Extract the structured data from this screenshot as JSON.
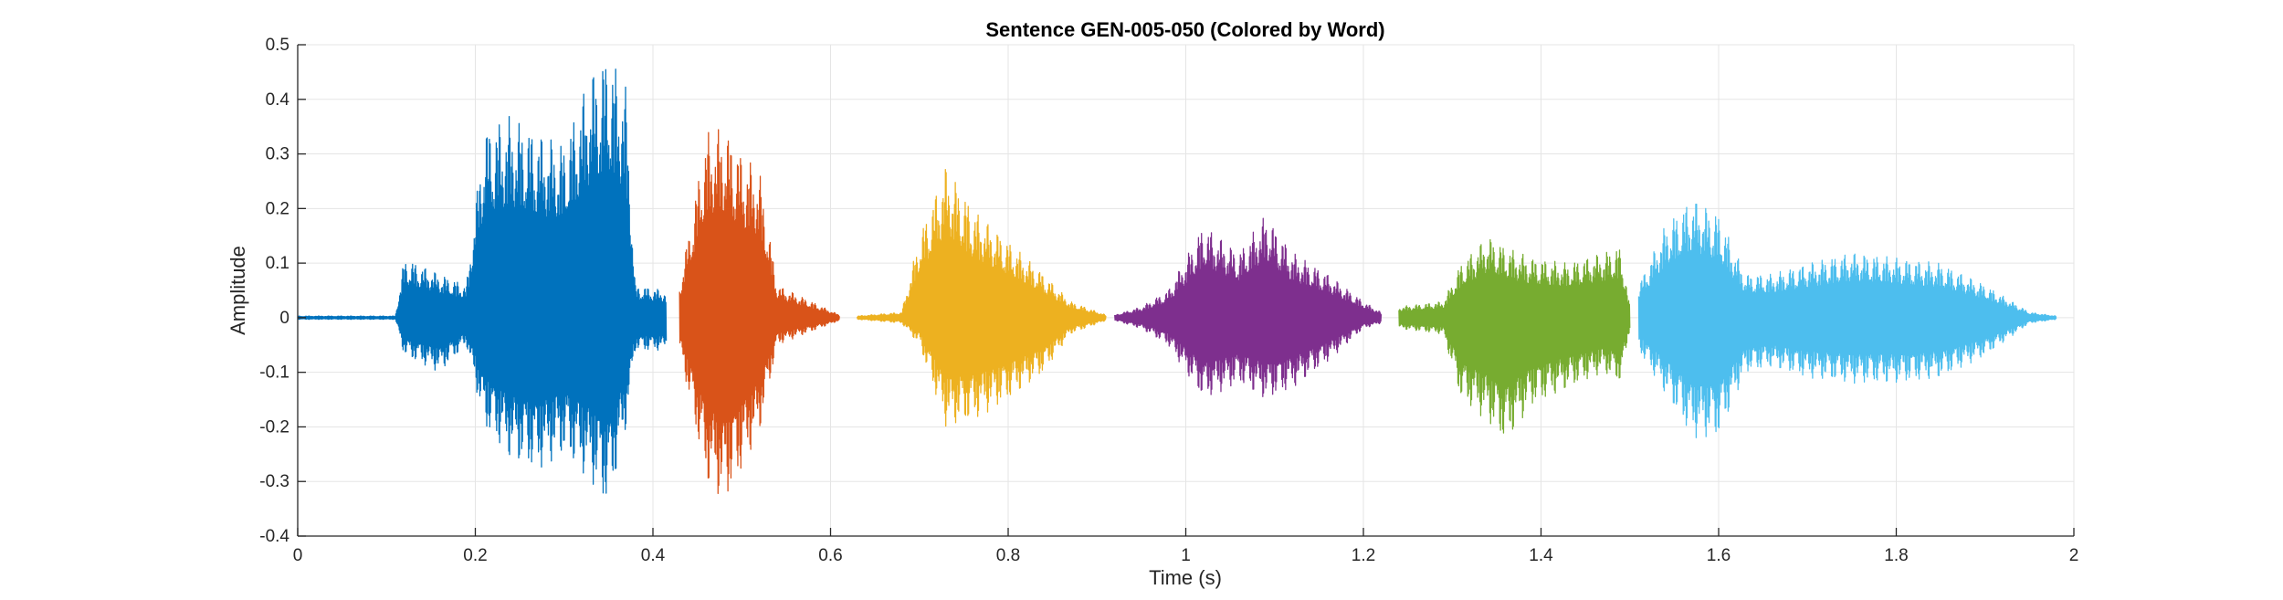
{
  "chart_data": {
    "type": "line",
    "title": "Sentence GEN-005-050 (Colored by Word)",
    "xlabel": "Time (s)",
    "ylabel": "Amplitude",
    "xlim": [
      0,
      2
    ],
    "ylim": [
      -0.4,
      0.5
    ],
    "grid": true,
    "legend": "none",
    "x_ticks": [
      0,
      0.2,
      0.4,
      0.6,
      0.8,
      1,
      1.2,
      1.4,
      1.6,
      1.8,
      2
    ],
    "x_tick_labels": [
      "0",
      "0.2",
      "0.4",
      "0.6",
      "0.8",
      "1",
      "1.2",
      "1.4",
      "1.6",
      "1.8",
      "2"
    ],
    "y_ticks": [
      -0.4,
      -0.3,
      -0.2,
      -0.1,
      0,
      0.1,
      0.2,
      0.3,
      0.4,
      0.5
    ],
    "y_tick_labels": [
      "-0.4",
      "-0.3",
      "-0.2",
      "-0.1",
      "0",
      "0.1",
      "0.2",
      "0.3",
      "0.4",
      "0.5"
    ],
    "series": [
      {
        "color": "#0072BD",
        "x_range": [
          0,
          0.415
        ],
        "envelope": [
          [
            0,
            0.003,
            -0.003
          ],
          [
            0.11,
            0.003,
            -0.003
          ],
          [
            0.12,
            0.11,
            -0.07
          ],
          [
            0.16,
            0.08,
            -0.1
          ],
          [
            0.19,
            0.06,
            -0.05
          ],
          [
            0.21,
            0.35,
            -0.2
          ],
          [
            0.24,
            0.37,
            -0.26
          ],
          [
            0.27,
            0.34,
            -0.28
          ],
          [
            0.3,
            0.32,
            -0.25
          ],
          [
            0.33,
            0.45,
            -0.3
          ],
          [
            0.35,
            0.49,
            -0.35
          ],
          [
            0.37,
            0.42,
            -0.2
          ],
          [
            0.38,
            0.06,
            -0.06
          ],
          [
            0.415,
            0.05,
            -0.06
          ]
        ]
      },
      {
        "color": "#D95319",
        "x_range": [
          0.43,
          0.61
        ],
        "envelope": [
          [
            0.43,
            0.06,
            -0.06
          ],
          [
            0.46,
            0.34,
            -0.3
          ],
          [
            0.48,
            0.35,
            -0.34
          ],
          [
            0.5,
            0.3,
            -0.28
          ],
          [
            0.52,
            0.27,
            -0.21
          ],
          [
            0.54,
            0.06,
            -0.05
          ],
          [
            0.61,
            0.005,
            -0.005
          ]
        ]
      },
      {
        "color": "#EDB120",
        "x_range": [
          0.63,
          0.91
        ],
        "envelope": [
          [
            0.63,
            0.003,
            -0.003
          ],
          [
            0.68,
            0.01,
            -0.01
          ],
          [
            0.7,
            0.15,
            -0.05
          ],
          [
            0.73,
            0.28,
            -0.2
          ],
          [
            0.76,
            0.2,
            -0.19
          ],
          [
            0.8,
            0.14,
            -0.15
          ],
          [
            0.84,
            0.08,
            -0.1
          ],
          [
            0.87,
            0.03,
            -0.03
          ],
          [
            0.91,
            0.005,
            -0.005
          ]
        ]
      },
      {
        "color": "#7E2F8E",
        "x_range": [
          0.92,
          1.22
        ],
        "envelope": [
          [
            0.92,
            0.005,
            -0.005
          ],
          [
            0.95,
            0.02,
            -0.02
          ],
          [
            0.98,
            0.05,
            -0.05
          ],
          [
            1.02,
            0.17,
            -0.15
          ],
          [
            1.06,
            0.12,
            -0.12
          ],
          [
            1.09,
            0.19,
            -0.15
          ],
          [
            1.12,
            0.12,
            -0.13
          ],
          [
            1.16,
            0.08,
            -0.08
          ],
          [
            1.2,
            0.03,
            -0.02
          ],
          [
            1.22,
            0.01,
            -0.01
          ]
        ]
      },
      {
        "color": "#77AC30",
        "x_range": [
          1.24,
          1.5
        ],
        "envelope": [
          [
            1.24,
            0.02,
            -0.02
          ],
          [
            1.29,
            0.03,
            -0.03
          ],
          [
            1.31,
            0.1,
            -0.15
          ],
          [
            1.34,
            0.15,
            -0.19
          ],
          [
            1.36,
            0.13,
            -0.23
          ],
          [
            1.39,
            0.11,
            -0.16
          ],
          [
            1.43,
            0.1,
            -0.13
          ],
          [
            1.47,
            0.12,
            -0.1
          ],
          [
            1.49,
            0.13,
            -0.12
          ],
          [
            1.5,
            0.02,
            -0.02
          ]
        ]
      },
      {
        "color": "#4DBEEE",
        "x_range": [
          1.51,
          1.98
        ],
        "envelope": [
          [
            1.51,
            0.06,
            -0.06
          ],
          [
            1.54,
            0.17,
            -0.14
          ],
          [
            1.57,
            0.22,
            -0.22
          ],
          [
            1.6,
            0.19,
            -0.22
          ],
          [
            1.63,
            0.08,
            -0.1
          ],
          [
            1.66,
            0.08,
            -0.09
          ],
          [
            1.7,
            0.1,
            -0.11
          ],
          [
            1.75,
            0.12,
            -0.12
          ],
          [
            1.8,
            0.11,
            -0.12
          ],
          [
            1.85,
            0.1,
            -0.11
          ],
          [
            1.9,
            0.06,
            -0.07
          ],
          [
            1.95,
            0.01,
            -0.01
          ],
          [
            1.98,
            0.003,
            -0.003
          ]
        ]
      }
    ]
  }
}
